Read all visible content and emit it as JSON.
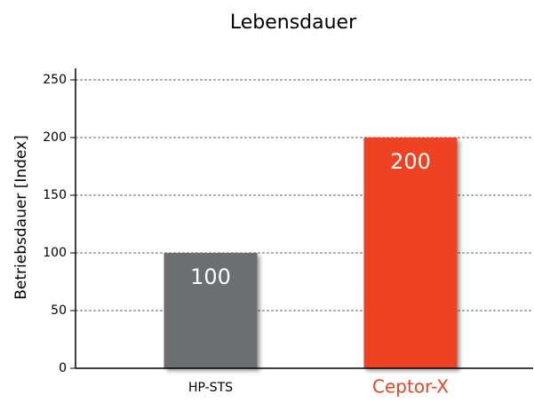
{
  "chart_data": {
    "type": "bar",
    "title": "Lebensdauer",
    "y_label": "Betriebsdauer [Index]",
    "categories": [
      "HP-STS",
      "Ceptor-X"
    ],
    "values": [
      100,
      200
    ],
    "colors": [
      "#6d6e71",
      "#ee4323"
    ],
    "category_colors": [
      "#000000",
      "#ee4323"
    ],
    "ylim": [
      0,
      260
    ],
    "yticks": [
      0,
      50,
      100,
      150,
      200,
      250
    ],
    "grid": true
  }
}
